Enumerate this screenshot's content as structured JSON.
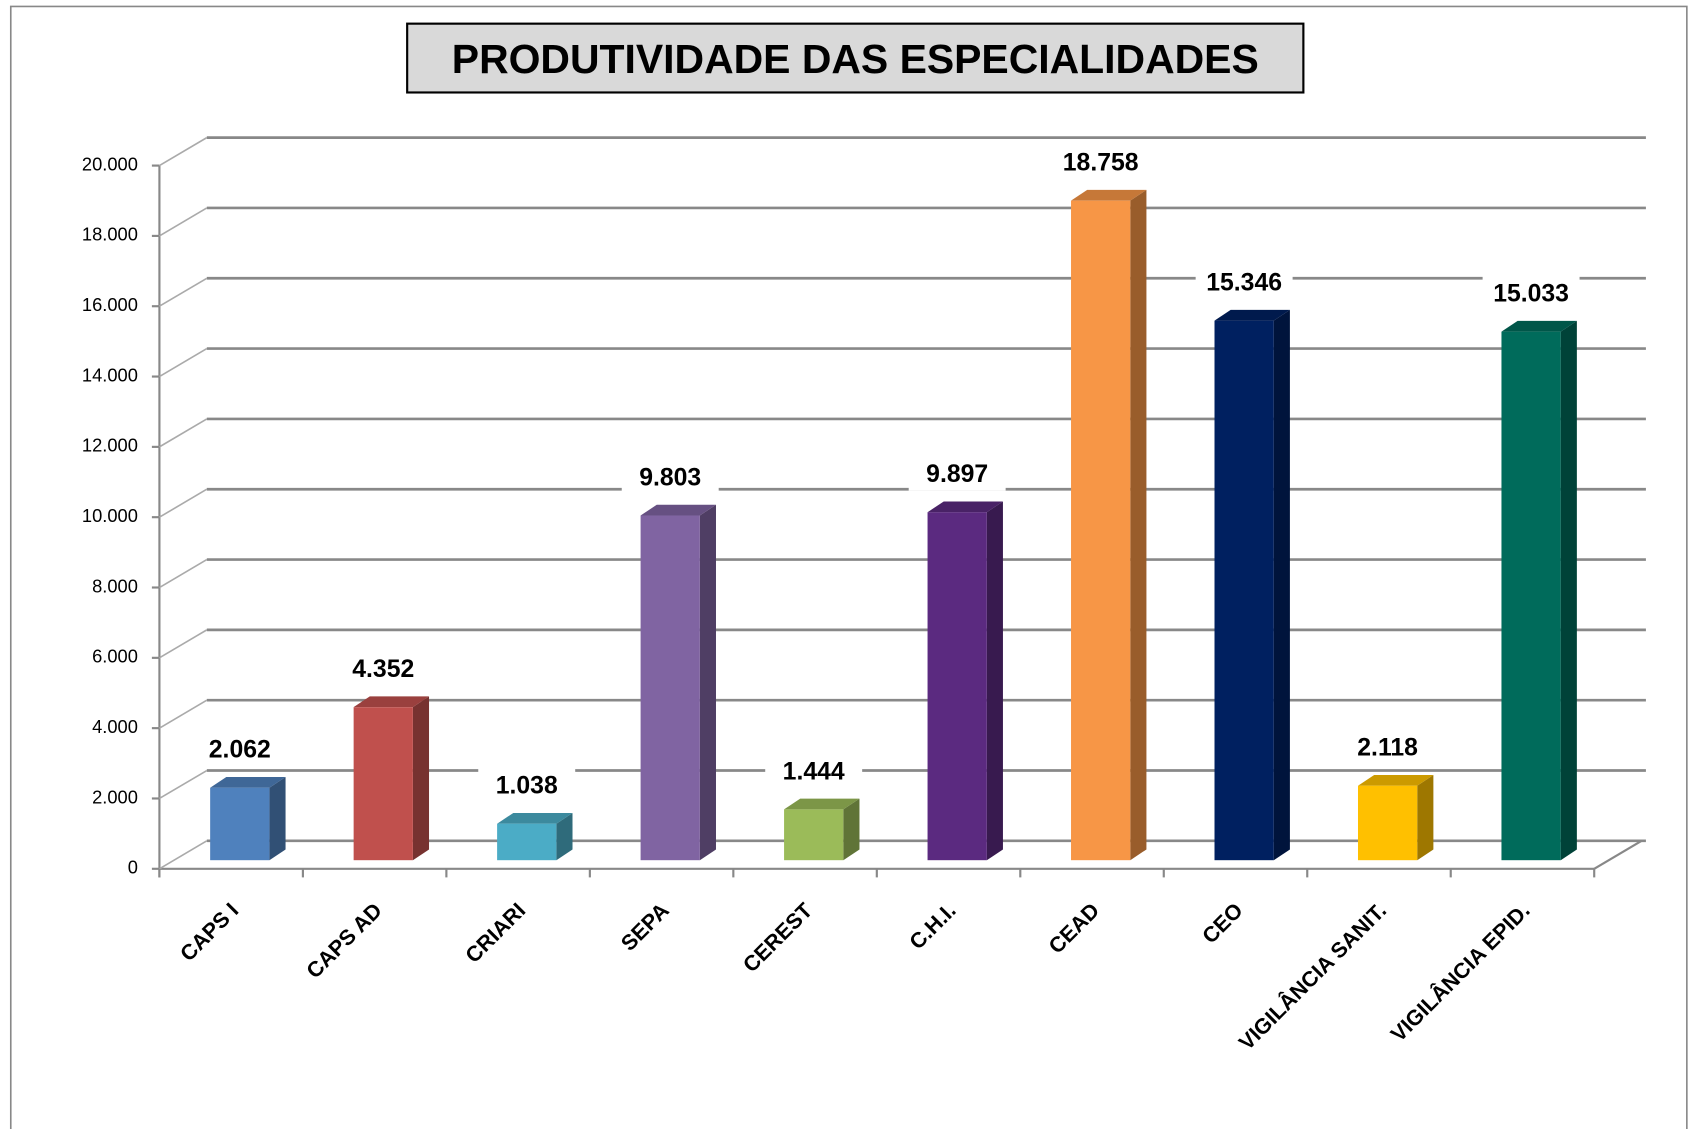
{
  "chart_data": {
    "type": "bar3d",
    "title": "PRODUTIVIDADE DAS ESPECIALIDADES",
    "categories": [
      "CAPS I",
      "CAPS AD",
      "CRIARI",
      "SEPA",
      "CEREST",
      "C.H.I.",
      "CEAD",
      "CEO",
      "VIGILÂNCIA SANIT.",
      "VIGILÂNCIA EPID."
    ],
    "values": [
      2062,
      4352,
      1038,
      9803,
      1444,
      9897,
      18758,
      15346,
      2118,
      15033
    ],
    "value_labels": [
      "2.062",
      "4.352",
      "1.038",
      "9.803",
      "1.444",
      "9.897",
      "18.758",
      "15.346",
      "2.118",
      "15.033"
    ],
    "colors": [
      "#4f81bd",
      "#c0504d",
      "#4bacc6",
      "#8064a2",
      "#9bbb59",
      "#5b2a80",
      "#f79646",
      "#002060",
      "#ffc000",
      "#006b5b"
    ],
    "ylim": [
      0,
      20000
    ],
    "yticks": [
      0,
      {
        "value": 2000,
        "label": "2.000"
      },
      {
        "value": 4000,
        "label": "4.000"
      },
      {
        "value": 6000,
        "label": "6.000"
      },
      {
        "value": 8000,
        "label": "8.000"
      },
      {
        "value": 10000,
        "label": "10.000"
      },
      {
        "value": 12000,
        "label": "12.000"
      },
      {
        "value": 14000,
        "label": "14.000"
      },
      {
        "value": 16000,
        "label": "16.000"
      },
      {
        "value": 18000,
        "label": "18.000"
      },
      {
        "value": 20000,
        "label": "20.000"
      }
    ],
    "grid": true
  }
}
